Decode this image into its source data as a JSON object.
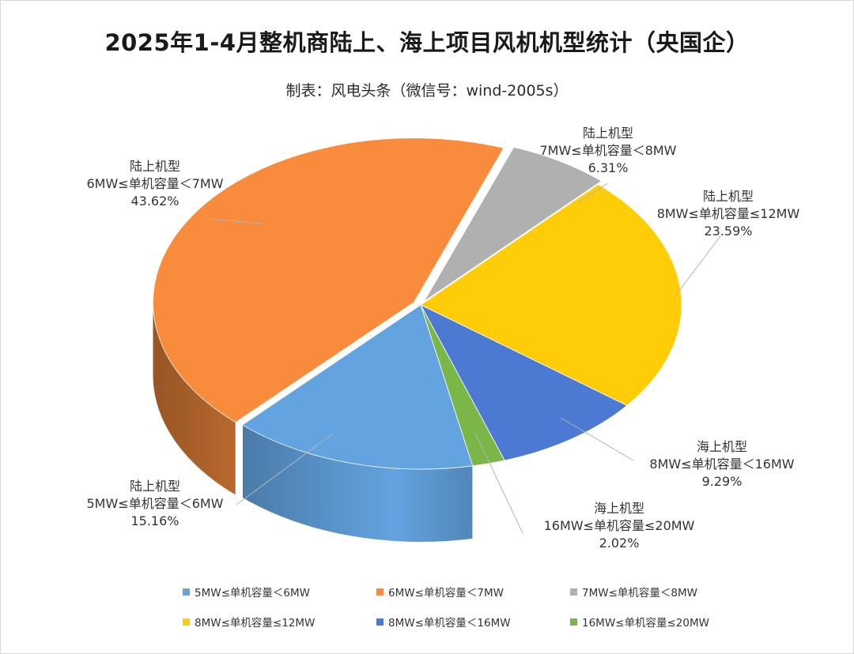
{
  "header": {
    "title": "2025年1-4月整机商陆上、海上项目风机机型统计（央国企）",
    "subtitle": "制表：风电头条（微信号：wind-2005s）"
  },
  "chart_data": {
    "type": "pie",
    "title": "2025年1-4月整机商陆上、海上项目风机机型统计（央国企）",
    "subtitle": "制表：风电头条（微信号：wind-2005s）",
    "legend_position": "bottom",
    "style": "3d-exploded",
    "slices": [
      {
        "category": "陆上机型",
        "label": "5MW≤单机容量＜6MW",
        "value": 15.16,
        "value_text": "15.16%",
        "color": "#63A3E0"
      },
      {
        "category": "陆上机型",
        "label": "6MW≤单机容量＜7MW",
        "value": 43.62,
        "value_text": "43.62%",
        "color": "#F98C3C"
      },
      {
        "category": "陆上机型",
        "label": "7MW≤单机容量＜8MW",
        "value": 6.31,
        "value_text": "6.31%",
        "color": "#B0B0B0"
      },
      {
        "category": "陆上机型",
        "label": "8MW≤单机容量≤12MW",
        "value": 23.59,
        "value_text": "23.59%",
        "color": "#FFCC08"
      },
      {
        "category": "海上机型",
        "label": "8MW≤单机容量＜16MW",
        "value": 9.29,
        "value_text": "9.29%",
        "color": "#4C79D1"
      },
      {
        "category": "海上机型",
        "label": "16MW≤单机容量≤20MW",
        "value": 2.02,
        "value_text": "2.02%",
        "color": "#7AB648"
      }
    ]
  }
}
